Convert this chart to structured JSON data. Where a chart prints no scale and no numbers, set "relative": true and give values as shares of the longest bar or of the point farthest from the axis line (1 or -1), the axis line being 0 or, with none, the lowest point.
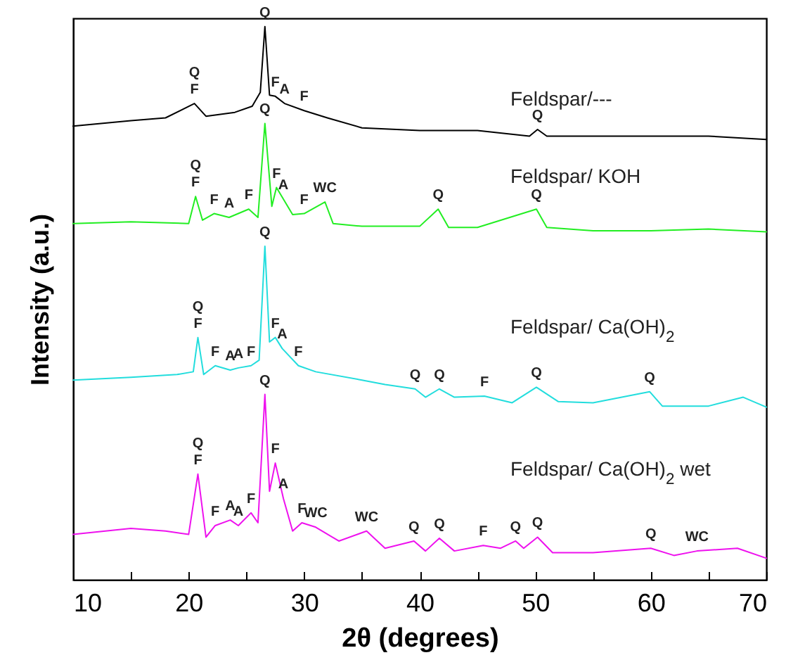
{
  "chart_data": {
    "type": "line",
    "relative": true,
    "xlabel": "2θ (degrees)",
    "ylabel": "Intensity (a.u.)",
    "xlim": [
      10,
      70
    ],
    "xticks": [
      10,
      {
        "value": 15,
        "label": null
      },
      20,
      {
        "value": 25,
        "label": null
      },
      30,
      {
        "value": 35,
        "label": null
      },
      40,
      {
        "value": 45,
        "label": null
      },
      50,
      {
        "value": 55,
        "label": null
      },
      60,
      {
        "value": 65,
        "label": null
      },
      70
    ],
    "grid": false,
    "series": [
      {
        "name": "Feldspar/---",
        "color": "#000000",
        "x": [
          10,
          15,
          18,
          20.5,
          21.5,
          24,
          25.5,
          26.2,
          26.6,
          27,
          27.5,
          28.3,
          30,
          32,
          35,
          40,
          45,
          49.5,
          50.2,
          51,
          55,
          60,
          65,
          70
        ],
        "values": [
          0.82,
          0.83,
          0.835,
          0.861,
          0.838,
          0.845,
          0.856,
          0.881,
          1,
          0.876,
          0.874,
          0.861,
          0.848,
          0.835,
          0.817,
          0.812,
          0.812,
          0.802,
          0.814,
          0.802,
          0.802,
          0.802,
          0.802,
          0.796
        ]
      },
      {
        "name": "Feldspar/ KOH",
        "color": "#22ee22",
        "x": [
          10,
          15,
          20,
          20.6,
          21.2,
          22.2,
          23.5,
          25.2,
          26,
          26.6,
          27.2,
          27.6,
          28.2,
          29,
          30,
          31.8,
          32.5,
          35,
          40,
          41.6,
          42.5,
          45,
          50.1,
          51,
          55,
          60,
          65,
          70
        ],
        "values": [
          0.644,
          0.647,
          0.644,
          0.693,
          0.65,
          0.662,
          0.655,
          0.67,
          0.655,
          0.825,
          0.675,
          0.709,
          0.688,
          0.66,
          0.662,
          0.683,
          0.644,
          0.639,
          0.639,
          0.67,
          0.637,
          0.637,
          0.67,
          0.637,
          0.631,
          0.631,
          0.634,
          0.629
        ]
      },
      {
        "name": "Feldspar/ Ca(OH)$_{2}$",
        "color": "#22dddd",
        "x": [
          10,
          15,
          19,
          20.4,
          20.8,
          21.3,
          22.3,
          23.6,
          24.3,
          25.4,
          26.1,
          26.6,
          27,
          27.5,
          28.1,
          29.5,
          31,
          35,
          37,
          39.6,
          40.5,
          41.7,
          43,
          45.6,
          48,
          50.1,
          52,
          55,
          59.9,
          61,
          65,
          68,
          70
        ],
        "values": [
          0.361,
          0.366,
          0.371,
          0.376,
          0.438,
          0.371,
          0.387,
          0.379,
          0.383,
          0.387,
          0.397,
          0.603,
          0.43,
          0.438,
          0.418,
          0.387,
          0.376,
          0.361,
          0.353,
          0.345,
          0.33,
          0.345,
          0.33,
          0.332,
          0.32,
          0.348,
          0.322,
          0.32,
          0.34,
          0.314,
          0.314,
          0.33,
          0.312
        ]
      },
      {
        "name": "Feldspar/ Ca(OH)$_{2}$ wet",
        "color": "#ee11ee",
        "x": [
          10,
          15,
          18,
          20,
          20.8,
          21.5,
          22.3,
          23.6,
          24.3,
          25.4,
          26,
          26.6,
          27,
          27.5,
          28.2,
          29,
          29.8,
          31,
          33,
          35.4,
          37,
          39.5,
          40.5,
          41.7,
          43,
          45.5,
          47,
          48.3,
          49,
          50.2,
          51.5,
          55,
          60,
          62,
          64,
          67.5,
          70
        ],
        "values": [
          0.082,
          0.093,
          0.088,
          0.082,
          0.191,
          0.077,
          0.098,
          0.108,
          0.098,
          0.121,
          0.103,
          0.335,
          0.16,
          0.211,
          0.147,
          0.088,
          0.103,
          0.095,
          0.07,
          0.088,
          0.057,
          0.07,
          0.052,
          0.075,
          0.052,
          0.062,
          0.057,
          0.07,
          0.057,
          0.077,
          0.049,
          0.049,
          0.057,
          0.044,
          0.052,
          0.057,
          0.039
        ]
      }
    ],
    "annotations": [
      {
        "text": "Q",
        "x": 20.5,
        "y": 0.861
      },
      {
        "text": "F",
        "x": 20.5,
        "y": 0.861
      },
      {
        "text": "Q",
        "x": 26.6,
        "y": 1
      },
      {
        "text": "F",
        "x": 27.5,
        "y": 0.874
      },
      {
        "text": "A",
        "x": 28.3,
        "y": 0.861
      },
      {
        "text": "F",
        "x": 30,
        "y": 0.848
      },
      {
        "text": "Q",
        "x": 50.2,
        "y": 0.814
      },
      {
        "text": "Q",
        "x": 26.6,
        "y": 0.825
      },
      {
        "text": "Q",
        "x": 20.6,
        "y": 0.693
      },
      {
        "text": "F",
        "x": 20.6,
        "y": 0.693
      },
      {
        "text": "F",
        "x": 22.2,
        "y": 0.662
      },
      {
        "text": "A",
        "x": 23.5,
        "y": 0.655
      },
      {
        "text": "F",
        "x": 25.2,
        "y": 0.67
      },
      {
        "text": "F",
        "x": 27.6,
        "y": 0.709
      },
      {
        "text": "A",
        "x": 28.2,
        "y": 0.688
      },
      {
        "text": "F",
        "x": 30,
        "y": 0.662
      },
      {
        "text": "WC",
        "x": 31.8,
        "y": 0.683
      },
      {
        "text": "Q",
        "x": 41.6,
        "y": 0.67
      },
      {
        "text": "Q",
        "x": 50.1,
        "y": 0.67
      },
      {
        "text": "Q",
        "x": 26.6,
        "y": 0.603
      },
      {
        "text": "Q",
        "x": 20.8,
        "y": 0.438
      },
      {
        "text": "F",
        "x": 20.8,
        "y": 0.438
      },
      {
        "text": "F",
        "x": 22.3,
        "y": 0.387
      },
      {
        "text": "A",
        "x": 23.6,
        "y": 0.379
      },
      {
        "text": "A",
        "x": 24.3,
        "y": 0.383
      },
      {
        "text": "F",
        "x": 25.4,
        "y": 0.387
      },
      {
        "text": "F",
        "x": 27.5,
        "y": 0.438
      },
      {
        "text": "A",
        "x": 28.1,
        "y": 0.418
      },
      {
        "text": "F",
        "x": 29.5,
        "y": 0.387
      },
      {
        "text": "Q",
        "x": 39.6,
        "y": 0.345
      },
      {
        "text": "Q",
        "x": 41.7,
        "y": 0.345
      },
      {
        "text": "F",
        "x": 45.6,
        "y": 0.332
      },
      {
        "text": "Q",
        "x": 50.1,
        "y": 0.348
      },
      {
        "text": "Q",
        "x": 59.9,
        "y": 0.34
      },
      {
        "text": "Q",
        "x": 26.6,
        "y": 0.335
      },
      {
        "text": "Q",
        "x": 20.8,
        "y": 0.191
      },
      {
        "text": "F",
        "x": 20.8,
        "y": 0.191
      },
      {
        "text": "F",
        "x": 22.3,
        "y": 0.098
      },
      {
        "text": "A",
        "x": 23.6,
        "y": 0.108
      },
      {
        "text": "A",
        "x": 24.3,
        "y": 0.098
      },
      {
        "text": "F",
        "x": 25.4,
        "y": 0.121
      },
      {
        "text": "F",
        "x": 27.5,
        "y": 0.211
      },
      {
        "text": "A",
        "x": 28.2,
        "y": 0.147
      },
      {
        "text": "F",
        "x": 29.8,
        "y": 0.103
      },
      {
        "text": "WC",
        "x": 31,
        "y": 0.095
      },
      {
        "text": "WC",
        "x": 35.4,
        "y": 0.088
      },
      {
        "text": "Q",
        "x": 39.5,
        "y": 0.07
      },
      {
        "text": "Q",
        "x": 41.7,
        "y": 0.075
      },
      {
        "text": "F",
        "x": 45.5,
        "y": 0.062
      },
      {
        "text": "Q",
        "x": 48.3,
        "y": 0.07
      },
      {
        "text": "Q",
        "x": 50.2,
        "y": 0.077
      },
      {
        "text": "Q",
        "x": 60,
        "y": 0.057
      },
      {
        "text": "WC",
        "x": 64,
        "y": 0.052
      }
    ]
  }
}
